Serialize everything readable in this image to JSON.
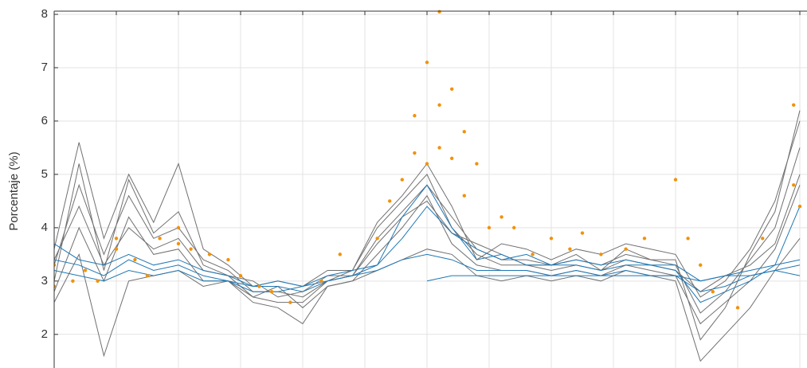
{
  "chart_data": {
    "type": "line",
    "ylabel": "Porcentaje (%)",
    "x": [
      0,
      4,
      8,
      12,
      16,
      20,
      24,
      28,
      32,
      36,
      40,
      44,
      48,
      52,
      56,
      60,
      64,
      68,
      72,
      76,
      80,
      84,
      88,
      92,
      96,
      100,
      104,
      108,
      112,
      116,
      120
    ],
    "xlim": [
      0,
      121
    ],
    "xticks": [
      0,
      10,
      20,
      30,
      40,
      50,
      60,
      70,
      80,
      90,
      100,
      110,
      120
    ],
    "ylim": [
      1.37,
      8.06
    ],
    "yticks": [
      2,
      3,
      4,
      5,
      6,
      7,
      8
    ],
    "grid": true,
    "series": [
      {
        "color": "#707070",
        "values": [
          3.3,
          4.8,
          3.5,
          4.6,
          3.8,
          4.0,
          3.4,
          3.2,
          2.8,
          2.8,
          2.7,
          3.0,
          3.1,
          3.8,
          4.3,
          4.8,
          4.2,
          3.6,
          3.4,
          3.4,
          3.3,
          3.4,
          3.3,
          3.5,
          3.4,
          3.3,
          2.4,
          2.8,
          3.4,
          4.0,
          5.5
        ]
      },
      {
        "color": "#707070",
        "values": [
          3.0,
          5.2,
          3.2,
          4.9,
          3.9,
          4.3,
          3.3,
          3.1,
          2.7,
          2.6,
          2.6,
          3.0,
          3.2,
          4.0,
          4.5,
          5.0,
          4.0,
          3.5,
          3.3,
          3.3,
          3.3,
          3.5,
          3.2,
          3.6,
          3.4,
          3.4,
          1.9,
          2.5,
          3.5,
          4.3,
          6.2
        ]
      },
      {
        "color": "#707070",
        "values": [
          2.8,
          4.0,
          3.0,
          4.2,
          3.5,
          3.6,
          3.0,
          3.0,
          2.7,
          2.9,
          2.5,
          2.9,
          3.0,
          3.5,
          4.0,
          4.6,
          3.7,
          3.3,
          3.2,
          3.2,
          3.1,
          3.2,
          3.1,
          3.3,
          3.2,
          3.1,
          2.2,
          2.6,
          3.0,
          3.6,
          4.8
        ]
      },
      {
        "color": "#707070",
        "values": [
          3.6,
          5.6,
          3.8,
          5.0,
          4.1,
          5.2,
          3.6,
          3.3,
          2.9,
          3.0,
          2.9,
          3.2,
          3.2,
          4.1,
          4.6,
          5.2,
          4.4,
          3.4,
          3.7,
          3.6,
          3.4,
          3.6,
          3.5,
          3.7,
          3.6,
          3.5,
          2.7,
          3.0,
          3.6,
          4.5,
          6.0
        ]
      },
      {
        "color": "#707070",
        "values": [
          2.6,
          3.5,
          1.6,
          3.0,
          3.1,
          3.2,
          2.9,
          3.0,
          2.6,
          2.5,
          2.2,
          2.9,
          3.0,
          3.2,
          3.4,
          3.6,
          3.5,
          3.1,
          3.0,
          3.1,
          3.0,
          3.1,
          3.0,
          3.2,
          3.1,
          3.0,
          1.5,
          2.0,
          2.5,
          3.2,
          3.8
        ]
      },
      {
        "color": "#707070",
        "values": [
          3.4,
          4.4,
          3.3,
          4.0,
          3.6,
          3.8,
          3.2,
          3.1,
          3.0,
          2.7,
          2.8,
          3.1,
          3.1,
          3.7,
          4.2,
          4.5,
          3.9,
          3.7,
          3.5,
          3.3,
          3.2,
          3.3,
          3.2,
          3.4,
          3.3,
          3.2,
          2.8,
          3.1,
          3.3,
          3.7,
          5.0
        ]
      },
      {
        "color": "#1f77b4",
        "values": [
          3.7,
          3.4,
          3.3,
          3.5,
          3.3,
          3.4,
          3.2,
          3.1,
          2.9,
          2.9,
          2.8,
          3.0,
          3.1,
          3.3,
          3.8,
          4.4,
          3.9,
          3.6,
          3.4,
          3.5,
          3.3,
          3.4,
          3.3,
          3.4,
          3.3,
          3.3,
          3.0,
          3.1,
          3.2,
          3.3,
          3.4
        ]
      },
      {
        "color": "#1f77b4",
        "values": [
          3.2,
          3.1,
          3.0,
          3.2,
          3.1,
          3.2,
          3.0,
          3.0,
          2.8,
          2.8,
          2.9,
          3.0,
          3.1,
          3.2,
          3.4,
          3.5,
          3.4,
          3.2,
          3.2,
          3.2,
          3.1,
          3.2,
          3.1,
          3.2,
          3.1,
          3.1,
          2.8,
          2.9,
          3.1,
          3.2,
          3.3
        ]
      },
      {
        "color": "#1f77b4",
        "values": [
          3.4,
          3.3,
          3.1,
          3.4,
          3.2,
          3.3,
          3.1,
          3.0,
          2.9,
          3.0,
          2.9,
          3.1,
          3.2,
          3.3,
          4.2,
          4.8,
          4.0,
          3.4,
          3.5,
          3.3,
          3.3,
          3.3,
          3.2,
          3.3,
          3.3,
          3.2,
          2.6,
          2.8,
          3.0,
          3.3,
          4.4
        ]
      },
      {
        "color": "#1f77b4",
        "values": [
          null,
          null,
          null,
          null,
          null,
          null,
          null,
          null,
          null,
          null,
          null,
          null,
          null,
          null,
          null,
          3.0,
          3.1,
          3.1,
          3.1,
          3.1,
          3.1,
          3.1,
          3.1,
          3.1,
          3.1,
          3.1,
          3.0,
          3.1,
          3.1,
          3.2,
          3.1
        ]
      }
    ],
    "scatter": {
      "color": "#f0920a",
      "x": [
        0,
        0,
        3,
        5,
        7,
        10,
        10,
        13,
        15,
        17,
        20,
        20,
        22,
        25,
        28,
        30,
        33,
        35,
        38,
        43,
        46,
        52,
        54,
        56,
        58,
        58,
        60,
        60,
        62,
        62,
        62,
        64,
        64,
        66,
        66,
        68,
        70,
        72,
        74,
        77,
        80,
        83,
        85,
        88,
        92,
        95,
        100,
        102,
        104,
        106,
        110,
        114,
        119,
        119,
        120
      ],
      "y": [
        3.3,
        2.9,
        3.0,
        3.2,
        3.0,
        3.6,
        3.8,
        3.4,
        3.1,
        3.8,
        3.7,
        4.0,
        3.6,
        3.5,
        3.4,
        3.1,
        2.9,
        2.8,
        2.6,
        3.0,
        3.5,
        3.8,
        4.5,
        4.9,
        5.4,
        6.1,
        5.2,
        7.1,
        8.05,
        6.3,
        5.5,
        6.6,
        5.3,
        5.8,
        4.6,
        5.2,
        4.0,
        4.2,
        4.0,
        3.5,
        3.8,
        3.6,
        3.9,
        3.5,
        3.6,
        3.8,
        4.9,
        3.8,
        3.3,
        2.8,
        2.5,
        3.8,
        6.3,
        4.8,
        4.4
      ]
    }
  }
}
